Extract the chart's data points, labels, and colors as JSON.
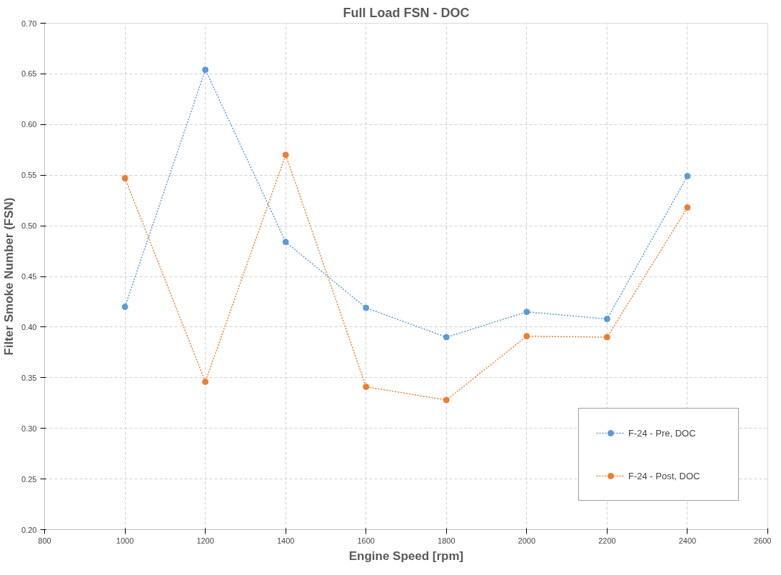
{
  "chart_data": {
    "type": "line",
    "title": "Full Load FSN - DOC",
    "xlabel": "Engine Speed [rpm]",
    "ylabel": "Filter Smoke Number (FSN)",
    "x": [
      1000,
      1200,
      1400,
      1600,
      1800,
      2000,
      2200,
      2400
    ],
    "series": [
      {
        "name": "F-24 - Pre, DOC",
        "color": "#5b9bd5",
        "values": [
          0.42,
          0.654,
          0.484,
          0.419,
          0.39,
          0.415,
          0.408,
          0.549
        ]
      },
      {
        "name": "F-24 - Post, DOC",
        "color": "#ed7d31",
        "values": [
          0.547,
          0.346,
          0.57,
          0.341,
          0.328,
          0.391,
          0.39,
          0.518
        ]
      }
    ],
    "xlim": [
      800,
      2600
    ],
    "xticks": [
      800,
      1000,
      1200,
      1400,
      1600,
      1800,
      2000,
      2200,
      2400,
      2600
    ],
    "ylim": [
      0.2,
      0.7
    ],
    "yticks": [
      {
        "value": 0.2,
        "label": "0.20"
      },
      {
        "value": 0.25,
        "label": "0.25"
      },
      {
        "value": 0.3,
        "label": "0.30"
      },
      {
        "value": 0.35,
        "label": "0.35"
      },
      {
        "value": 0.4,
        "label": "0.40"
      },
      {
        "value": 0.45,
        "label": "0.45"
      },
      {
        "value": 0.5,
        "label": "0.50"
      },
      {
        "value": 0.55,
        "label": "0.55"
      },
      {
        "value": 0.6,
        "label": "0.60"
      },
      {
        "value": 0.65,
        "label": "0.65"
      },
      {
        "value": 0.7,
        "label": "0.70"
      }
    ],
    "grid": true,
    "legend": "bottom right",
    "marker": "circle",
    "line_style": "dotted"
  }
}
